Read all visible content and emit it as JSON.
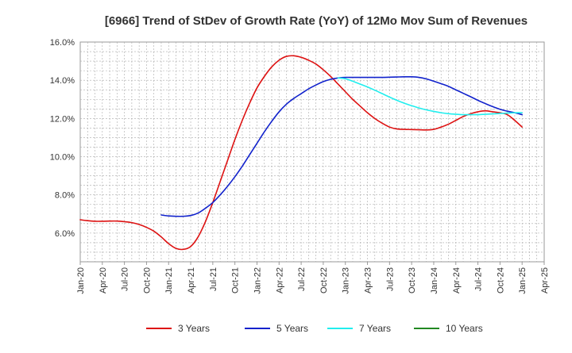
{
  "chart_data": {
    "type": "line",
    "title": "[6966]  Trend of StDev of Growth Rate (YoY) of 12Mo Mov Sum of Revenues",
    "xlabel": "",
    "ylabel": "",
    "ylim": [
      4.5,
      16.0
    ],
    "y_ticks": [
      6.0,
      8.0,
      10.0,
      12.0,
      14.0,
      16.0
    ],
    "y_tick_labels": [
      "6.0%",
      "8.0%",
      "10.0%",
      "12.0%",
      "14.0%",
      "16.0%"
    ],
    "x_range": [
      0,
      63
    ],
    "x_ticks": [
      0,
      3,
      6,
      9,
      12,
      15,
      18,
      21,
      24,
      27,
      30,
      33,
      36,
      39,
      42,
      45,
      48,
      51,
      54,
      57,
      60,
      63
    ],
    "x_tick_labels": [
      "Jan-20",
      "Apr-20",
      "Jul-20",
      "Oct-20",
      "Jan-21",
      "Apr-21",
      "Jul-21",
      "Oct-21",
      "Jan-22",
      "Apr-22",
      "Jul-22",
      "Oct-22",
      "Jan-23",
      "Apr-23",
      "Jul-23",
      "Oct-23",
      "Jan-24",
      "Apr-24",
      "Jul-24",
      "Oct-24",
      "Jan-25",
      "Apr-25"
    ],
    "grid": true,
    "legend_position": "bottom",
    "series": [
      {
        "name": "3 Years",
        "color": "#dd1111",
        "x": [
          0,
          1,
          2,
          3,
          4,
          5,
          6,
          7,
          8,
          9,
          10,
          11,
          12,
          13,
          14,
          15,
          16,
          17,
          18,
          19,
          20,
          21,
          22,
          23,
          24,
          25,
          26,
          27,
          28,
          29,
          30,
          31,
          32,
          33,
          34,
          35,
          36,
          37,
          38,
          39,
          40,
          41,
          42,
          43,
          44,
          45,
          46,
          47,
          48,
          49,
          50,
          51,
          52,
          53,
          54,
          55,
          56,
          57,
          58,
          59,
          60
        ],
        "values": [
          6.7,
          6.65,
          6.62,
          6.62,
          6.63,
          6.63,
          6.6,
          6.55,
          6.45,
          6.3,
          6.1,
          5.8,
          5.45,
          5.2,
          5.15,
          5.3,
          5.8,
          6.6,
          7.6,
          8.7,
          9.8,
          10.9,
          11.9,
          12.8,
          13.6,
          14.2,
          14.7,
          15.05,
          15.25,
          15.28,
          15.2,
          15.05,
          14.85,
          14.55,
          14.2,
          13.8,
          13.4,
          13.0,
          12.65,
          12.3,
          12.0,
          11.75,
          11.55,
          11.45,
          11.43,
          11.42,
          11.41,
          11.4,
          11.43,
          11.55,
          11.7,
          11.9,
          12.1,
          12.25,
          12.35,
          12.4,
          12.35,
          12.3,
          12.2,
          11.9,
          11.55
        ]
      },
      {
        "name": "5 Years",
        "color": "#1122cc",
        "x": [
          11,
          12,
          13,
          14,
          15,
          16,
          17,
          18,
          19,
          20,
          21,
          22,
          23,
          24,
          25,
          26,
          27,
          28,
          29,
          30,
          31,
          32,
          33,
          34,
          35,
          36,
          37,
          38,
          39,
          40,
          41,
          42,
          43,
          44,
          45,
          46,
          47,
          48,
          49,
          50,
          51,
          52,
          53,
          54,
          55,
          56,
          57,
          58,
          59,
          60
        ],
        "values": [
          6.95,
          6.9,
          6.88,
          6.88,
          6.92,
          7.05,
          7.3,
          7.6,
          8.0,
          8.45,
          8.95,
          9.5,
          10.1,
          10.7,
          11.3,
          11.85,
          12.35,
          12.75,
          13.05,
          13.3,
          13.55,
          13.75,
          13.93,
          14.05,
          14.12,
          14.15,
          14.15,
          14.15,
          14.15,
          14.15,
          14.15,
          14.16,
          14.17,
          14.18,
          14.18,
          14.15,
          14.07,
          13.95,
          13.82,
          13.68,
          13.5,
          13.32,
          13.14,
          12.95,
          12.78,
          12.62,
          12.48,
          12.38,
          12.3,
          12.2
        ]
      },
      {
        "name": "7 Years",
        "color": "#22eeee",
        "x": [
          35,
          36,
          37,
          38,
          39,
          40,
          41,
          42,
          43,
          44,
          45,
          46,
          47,
          48,
          49,
          50,
          51,
          52,
          53,
          54,
          55,
          56,
          57,
          58,
          59,
          60
        ],
        "values": [
          14.12,
          14.08,
          13.95,
          13.8,
          13.65,
          13.48,
          13.3,
          13.12,
          12.95,
          12.8,
          12.67,
          12.55,
          12.45,
          12.37,
          12.3,
          12.25,
          12.22,
          12.2,
          12.2,
          12.2,
          12.22,
          12.24,
          12.26,
          12.28,
          12.3,
          12.3
        ]
      },
      {
        "name": "10 Years",
        "color": "#228822",
        "x": [],
        "values": []
      }
    ]
  }
}
